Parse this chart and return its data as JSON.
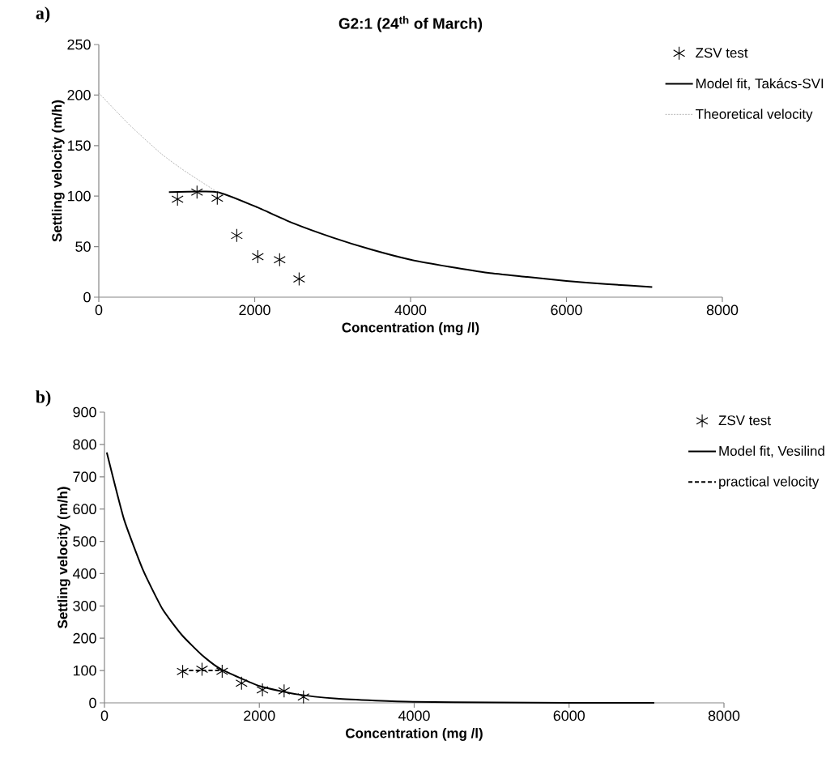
{
  "chart_data": [
    {
      "type": "scatter",
      "title": "G2:1 (24$^{th}$ of March)",
      "xlabel": "Concentration (mg /l)",
      "ylabel": "Settling velocity (m/h)",
      "annotations": [
        "a)"
      ],
      "xlim": [
        0,
        8000
      ],
      "xticks": [
        0,
        2000,
        4000,
        6000,
        8000
      ],
      "ylim": [
        0,
        250
      ],
      "yticks": [
        0,
        50,
        100,
        150,
        200,
        250
      ],
      "grid": false,
      "legend": "top right",
      "series": [
        {
          "name": "ZSV test",
          "marker": "cross",
          "color": "#000000",
          "x": [
            1010,
            1260,
            1520,
            1770,
            2040,
            2320,
            2570
          ],
          "values": [
            97,
            104,
            98,
            61,
            40,
            37,
            18
          ]
        },
        {
          "name": "Model fit, Takács-SVI",
          "type": "line",
          "marker": "none",
          "line_style": "solid",
          "color": "#000000",
          "x": [
            900,
            1520,
            2000,
            2500,
            3000,
            3500,
            4000,
            4500,
            5000,
            5500,
            6000,
            6500,
            7100
          ],
          "values": [
            104,
            104,
            90,
            73,
            59,
            47,
            37,
            30,
            24,
            20,
            16,
            13,
            10
          ]
        },
        {
          "name": "Theoretical velocity",
          "type": "line",
          "marker": "none",
          "line_style": "dotted",
          "color": "#808080",
          "x": [
            0,
            400,
            800,
            1100,
            1600
          ],
          "values": [
            202,
            170,
            142,
            125,
            100
          ]
        }
      ]
    },
    {
      "type": "scatter",
      "xlabel": "Concentration (mg /l)",
      "ylabel": "Settling velocity (m/h)",
      "annotations": [
        "b)"
      ],
      "xlim": [
        0,
        8000
      ],
      "xticks": [
        0,
        2000,
        4000,
        6000,
        8000
      ],
      "ylim": [
        0,
        900
      ],
      "yticks": [
        0,
        100,
        200,
        300,
        400,
        500,
        600,
        700,
        800,
        900
      ],
      "grid": false,
      "legend": "top right",
      "series": [
        {
          "name": "ZSV test",
          "marker": "cross",
          "color": "#000000",
          "x": [
            1010,
            1260,
            1520,
            1770,
            2040,
            2320,
            2570
          ],
          "values": [
            97,
            104,
            98,
            61,
            40,
            37,
            18
          ]
        },
        {
          "name": "Model fit, Vesilind",
          "type": "line",
          "marker": "none",
          "line_style": "solid",
          "color": "#000000",
          "x": [
            30,
            250,
            500,
            750,
            1000,
            1250,
            1500,
            2000,
            2500,
            3000,
            3500,
            4000,
            5000,
            6000,
            7100
          ],
          "values": [
            775,
            570,
            410,
            290,
            210,
            150,
            105,
            52,
            26,
            13,
            7,
            3,
            1,
            0,
            0
          ]
        },
        {
          "name": "practical velocity",
          "type": "line",
          "marker": "none",
          "line_style": "dashed",
          "color": "#000000",
          "x": [
            1010,
            1260,
            1520
          ],
          "values": [
            100,
            100,
            100
          ]
        }
      ]
    }
  ]
}
